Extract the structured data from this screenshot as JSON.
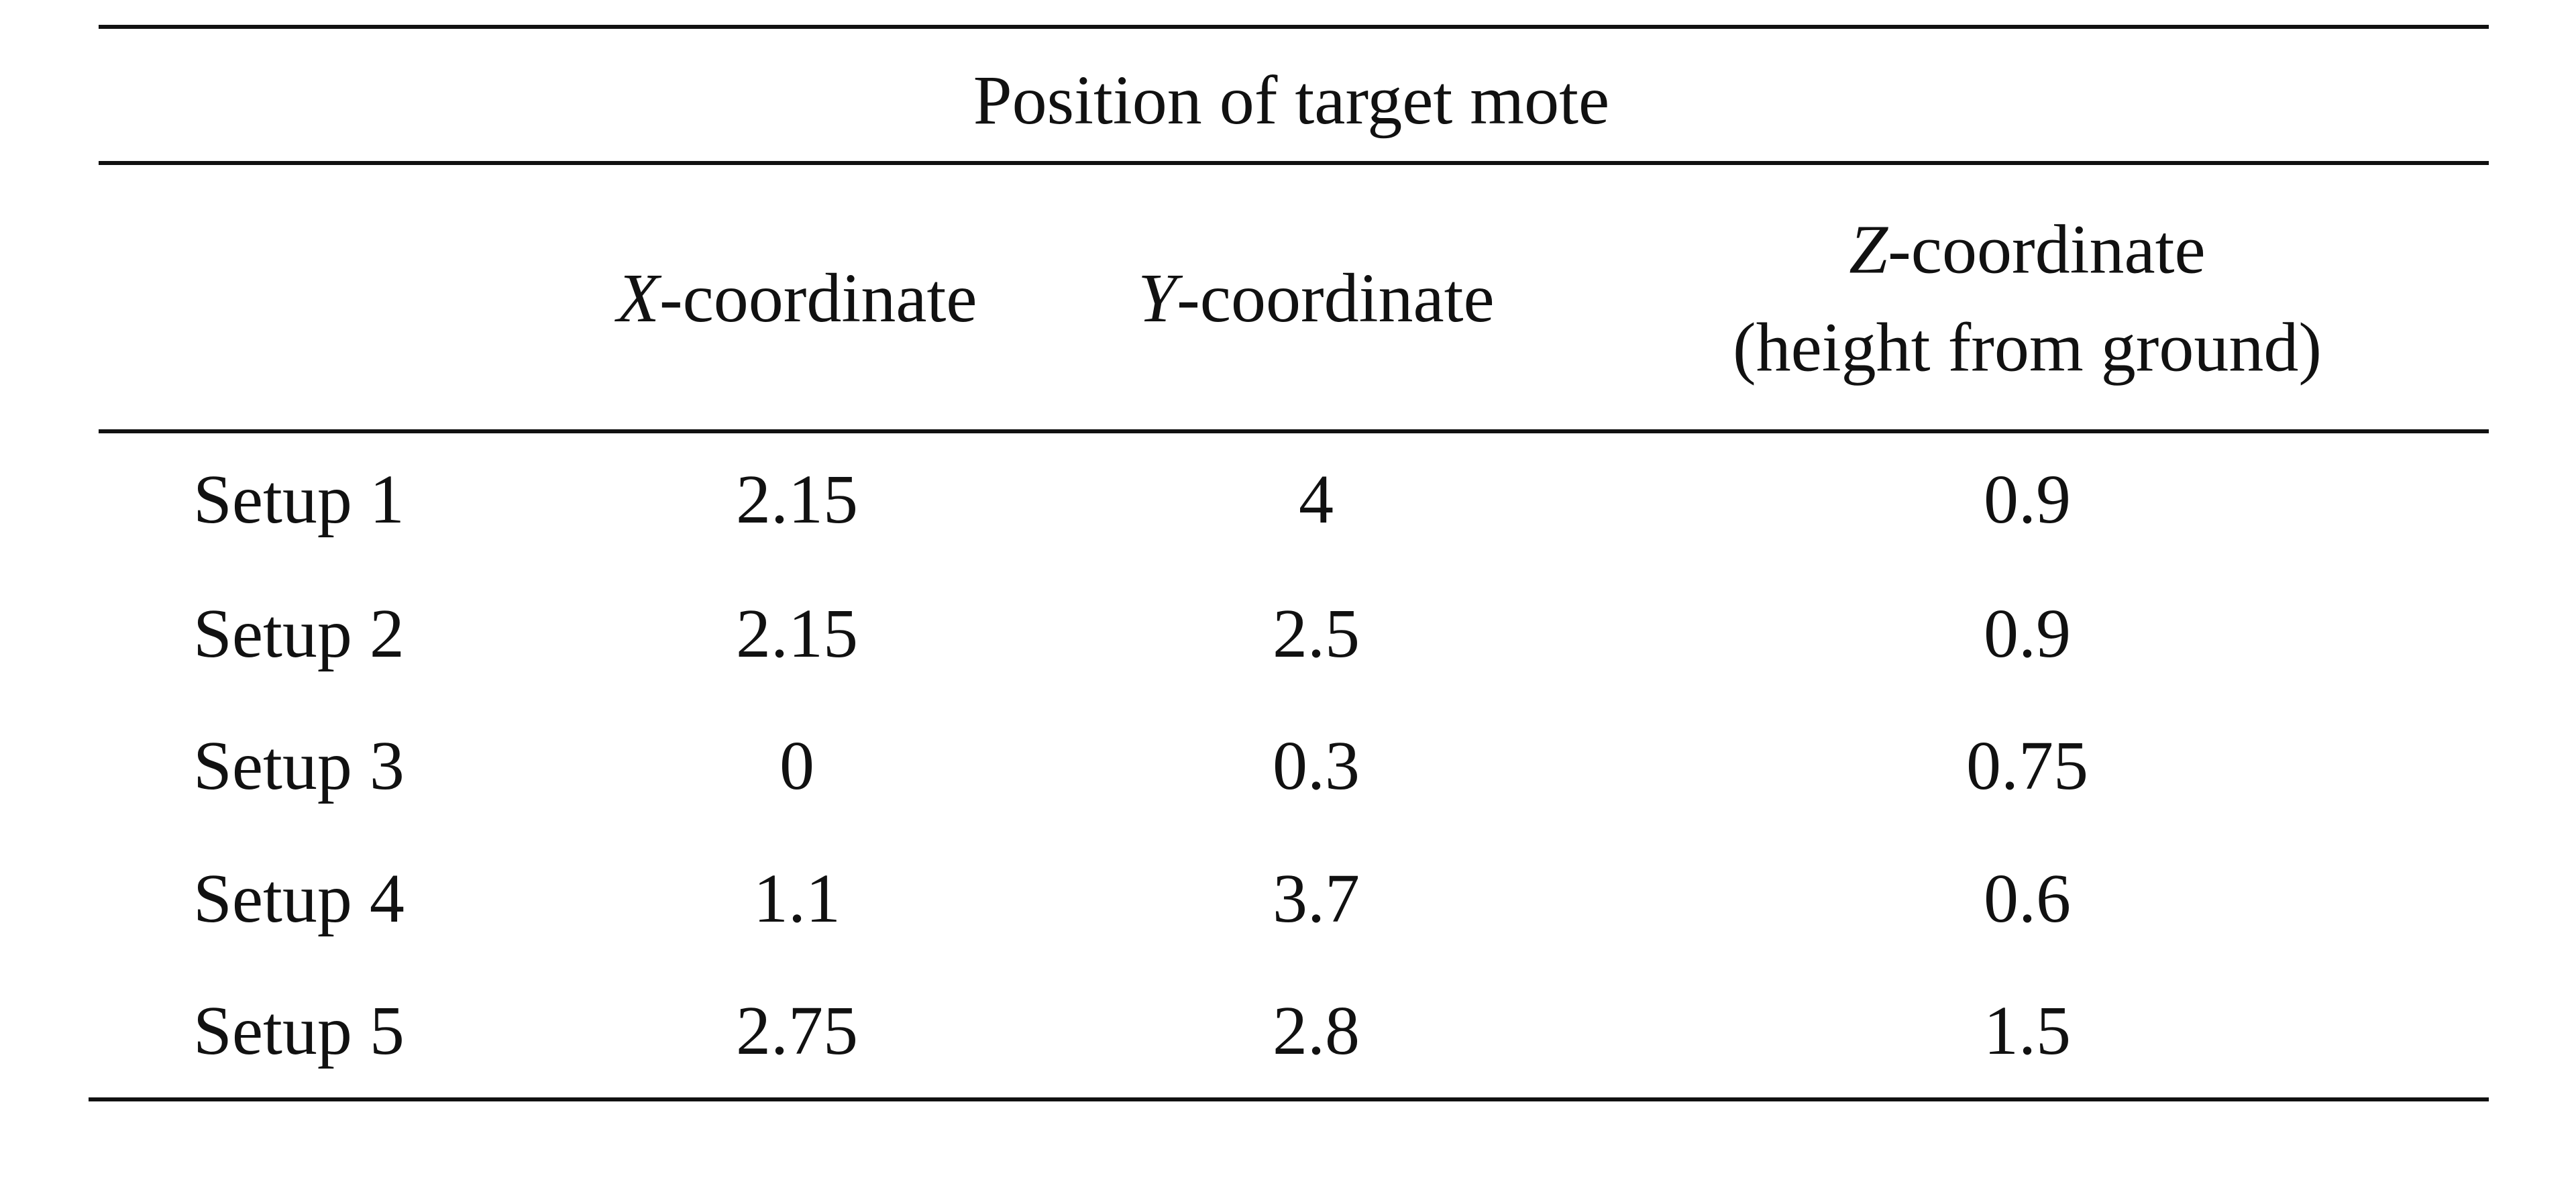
{
  "table": {
    "title": "Position of target mote",
    "headers": {
      "x": {
        "var": "X",
        "suffix": "-coordinate"
      },
      "y": {
        "var": "Y",
        "suffix": "-coordinate"
      },
      "z": {
        "var": "Z",
        "suffix": "-coordinate",
        "line2": "(height from ground)"
      }
    },
    "rows": [
      {
        "label": "Setup 1",
        "x": "2.15",
        "y": "4",
        "z": "0.9"
      },
      {
        "label": "Setup 2",
        "x": "2.15",
        "y": "2.5",
        "z": "0.9"
      },
      {
        "label": "Setup 3",
        "x": "0",
        "y": "0.3",
        "z": "0.75"
      },
      {
        "label": "Setup 4",
        "x": "1.1",
        "y": "3.7",
        "z": "0.6"
      },
      {
        "label": "Setup 5",
        "x": "2.75",
        "y": "2.8",
        "z": "1.5"
      }
    ]
  }
}
